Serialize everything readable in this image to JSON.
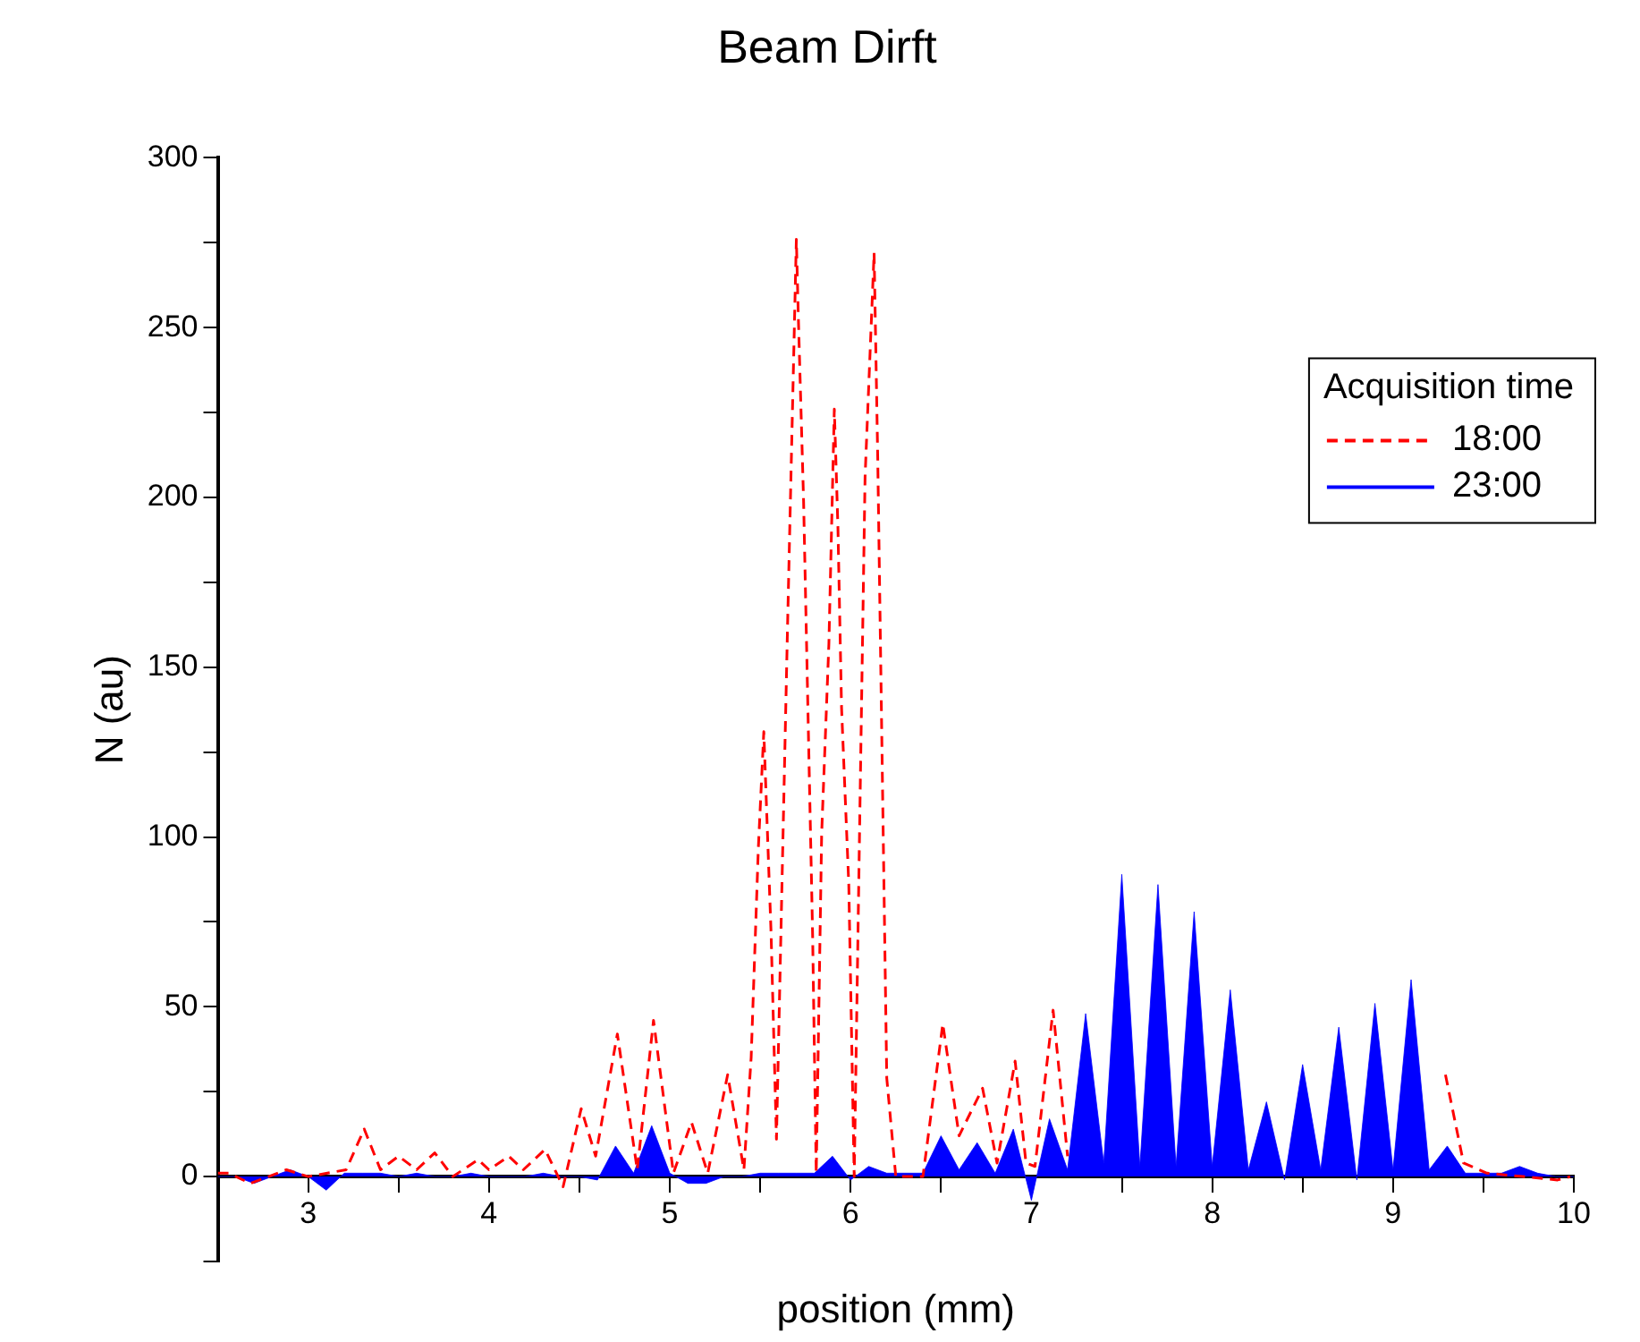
{
  "chart_data": {
    "type": "line",
    "title": "Beam Dirft",
    "xlabel": "position (mm)",
    "ylabel": "N (au)",
    "legend_title": "Acquisition time",
    "legend": "top right",
    "grid": false,
    "xlim": [
      2.5,
      10
    ],
    "xticks": [
      {
        "value": 2.5,
        "label": null
      },
      3,
      {
        "value": 3.5,
        "label": null
      },
      4,
      {
        "value": 4.5,
        "label": null
      },
      5,
      {
        "value": 5.5,
        "label": null
      },
      6,
      {
        "value": 6.5,
        "label": null
      },
      7,
      {
        "value": 7.5,
        "label": null
      },
      8,
      {
        "value": 8.5,
        "label": null
      },
      9,
      {
        "value": 9.5,
        "label": null
      },
      10
    ],
    "ylim": [
      -25,
      300
    ],
    "yticks": [
      {
        "value": -25,
        "label": null
      },
      0,
      {
        "value": 25,
        "label": null
      },
      50,
      {
        "value": 75,
        "label": null
      },
      100,
      {
        "value": 125,
        "label": null
      },
      150,
      {
        "value": 175,
        "label": null
      },
      200,
      {
        "value": 225,
        "label": null
      },
      250,
      {
        "value": 275,
        "label": null
      },
      300
    ],
    "series": [
      {
        "name": "18:00",
        "type": "line",
        "line_style": "dashed",
        "color": "#ff0000",
        "x": [
          2.5,
          2.56,
          2.68,
          2.88,
          3.0,
          3.21,
          3.31,
          3.4,
          3.5,
          3.6,
          3.7,
          3.8,
          3.94,
          4.0,
          4.11,
          4.19,
          4.31,
          4.41,
          4.51,
          4.59,
          4.71,
          4.82,
          4.91,
          5.02,
          5.12,
          5.21,
          5.32,
          5.41,
          5.45,
          5.49,
          5.52,
          5.56,
          5.59,
          5.65,
          5.7,
          5.71,
          5.74,
          5.79,
          5.81,
          5.84,
          5.88,
          5.91,
          5.93,
          5.95,
          5.99,
          6.02,
          6.08,
          6.13,
          6.15,
          6.2,
          6.25,
          6.4,
          6.51,
          6.6,
          6.73,
          6.81,
          6.91,
          6.97,
          7.02,
          7.12,
          7.2,
          8.0,
          9.29,
          9.39,
          9.52,
          9.72,
          9.91,
          9.98
        ],
        "values": [
          1,
          1,
          -2,
          2,
          0,
          2,
          14,
          2,
          6,
          2,
          7,
          0,
          5,
          2,
          6,
          2,
          8,
          -3,
          20,
          6,
          42,
          2,
          46,
          1,
          16,
          1,
          30,
          2,
          35,
          97,
          131,
          72,
          11,
          159,
          276,
          255,
          199,
          71,
          1,
          101,
          157,
          226,
          191,
          138,
          86,
          0,
          206,
          272,
          212,
          29,
          0,
          0,
          45,
          12,
          26,
          4,
          34,
          4,
          3,
          49,
          6,
          null,
          30,
          4,
          1,
          0,
          -1,
          0
        ]
      },
      {
        "name": "23:00",
        "type": "area",
        "line_style": "solid",
        "color": "#0000ff",
        "x": [
          2.5,
          2.6,
          2.7,
          2.8,
          2.9,
          3.0,
          3.1,
          3.2,
          3.3,
          3.4,
          3.5,
          3.6,
          3.7,
          3.8,
          3.9,
          4.0,
          4.1,
          4.2,
          4.3,
          4.4,
          4.5,
          4.6,
          4.7,
          4.8,
          4.9,
          5.0,
          5.1,
          5.2,
          5.3,
          5.4,
          5.5,
          5.6,
          5.7,
          5.8,
          5.9,
          6.0,
          6.1,
          6.2,
          6.3,
          6.4,
          6.5,
          6.6,
          6.7,
          6.8,
          6.9,
          7.0,
          7.1,
          7.2,
          7.3,
          7.4,
          7.5,
          7.6,
          7.7,
          7.8,
          7.9,
          8.0,
          8.1,
          8.2,
          8.3,
          8.4,
          8.5,
          8.6,
          8.7,
          8.8,
          8.9,
          9.0,
          9.1,
          9.2,
          9.3,
          9.4,
          9.5,
          9.6,
          9.7,
          9.8,
          9.9,
          10.0
        ],
        "values": [
          0,
          0,
          -2,
          0,
          2,
          0,
          -4,
          1,
          1,
          1,
          0,
          1,
          0,
          0,
          1,
          0,
          0,
          0,
          1,
          0,
          0,
          -1,
          9,
          1,
          15,
          1,
          -2,
          -2,
          0,
          0,
          1,
          1,
          1,
          1,
          6,
          -1,
          3,
          1,
          1,
          1,
          12,
          2,
          10,
          1,
          14,
          -7,
          17,
          2,
          48,
          4,
          89,
          3,
          86,
          3,
          78,
          3,
          55,
          2,
          22,
          -1,
          33,
          2,
          44,
          -1,
          51,
          2,
          58,
          2,
          9,
          1,
          1,
          1,
          3,
          1,
          0,
          0
        ]
      }
    ]
  }
}
